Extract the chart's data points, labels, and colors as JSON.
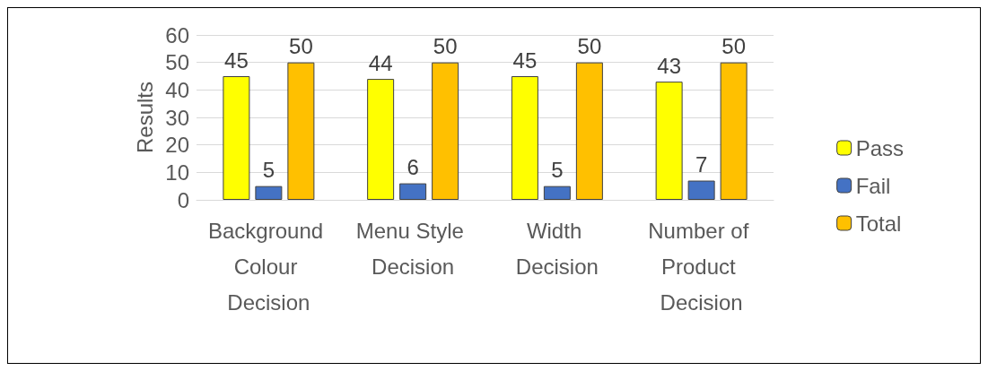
{
  "chart_data": {
    "type": "bar",
    "ylabel": "Results",
    "categories": [
      "Background Colour Decision",
      "Menu Style Decision",
      "Width Decision",
      "Number of Product Decision"
    ],
    "series": [
      {
        "name": "Pass",
        "color": "#ffff00",
        "values": [
          45,
          44,
          45,
          43
        ]
      },
      {
        "name": "Fail",
        "color": "#4472c4",
        "values": [
          5,
          6,
          5,
          7
        ]
      },
      {
        "name": "Total",
        "color": "#ffc000",
        "values": [
          50,
          50,
          50,
          50
        ]
      }
    ],
    "ylim": [
      0,
      60
    ],
    "yticks": [
      0,
      10,
      20,
      30,
      40,
      50,
      60
    ],
    "grid": "y",
    "legend": "right",
    "data_labels": true
  }
}
